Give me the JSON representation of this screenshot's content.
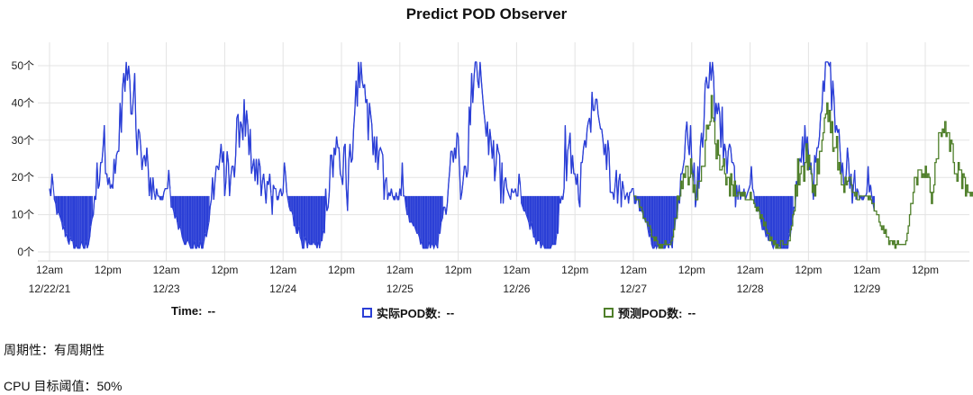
{
  "chart_data": {
    "type": "line",
    "title": "Predict POD Observer",
    "y_ticks": [
      "0个",
      "10个",
      "20个",
      "30个",
      "40个",
      "50个"
    ],
    "ylim": [
      0,
      51
    ],
    "x_ticks": [
      {
        "label": "12am",
        "date": "12/22/21",
        "hour": 0
      },
      {
        "label": "12pm",
        "date": "",
        "hour": 12
      },
      {
        "label": "12am",
        "date": "12/23",
        "hour": 24
      },
      {
        "label": "12pm",
        "date": "",
        "hour": 36
      },
      {
        "label": "12am",
        "date": "12/24",
        "hour": 48
      },
      {
        "label": "12pm",
        "date": "",
        "hour": 60
      },
      {
        "label": "12am",
        "date": "12/25",
        "hour": 72
      },
      {
        "label": "12pm",
        "date": "",
        "hour": 84
      },
      {
        "label": "12am",
        "date": "12/26",
        "hour": 96
      },
      {
        "label": "12pm",
        "date": "",
        "hour": 108
      },
      {
        "label": "12am",
        "date": "12/27",
        "hour": 120
      },
      {
        "label": "12pm",
        "date": "",
        "hour": 132
      },
      {
        "label": "12am",
        "date": "12/28",
        "hour": 144
      },
      {
        "label": "12pm",
        "date": "",
        "hour": 156
      },
      {
        "label": "12am",
        "date": "12/29",
        "hour": 168
      },
      {
        "label": "12pm",
        "date": "",
        "hour": 180
      }
    ],
    "series": [
      {
        "name": "实际POD数",
        "color": "#2b3fd6",
        "start_hour": 0,
        "end_hour": 169.5,
        "daily_profile": [
          [
            0,
            16
          ],
          [
            0.5,
            19
          ],
          [
            1,
            13
          ],
          [
            2,
            9
          ],
          [
            3,
            6
          ],
          [
            4,
            3
          ],
          [
            5,
            1
          ],
          [
            6,
            1
          ],
          [
            7,
            1
          ],
          [
            8,
            3
          ],
          [
            9,
            11
          ],
          [
            10,
            22
          ],
          [
            11,
            29
          ],
          [
            12,
            25
          ],
          [
            13,
            16
          ],
          [
            14,
            27
          ],
          [
            15,
            42
          ],
          [
            16,
            50
          ],
          [
            17,
            40
          ],
          [
            18,
            32
          ],
          [
            19,
            25
          ],
          [
            20,
            22
          ],
          [
            21,
            18
          ],
          [
            22,
            16
          ],
          [
            23,
            15
          ],
          [
            24,
            16
          ]
        ],
        "daily_peaks": [
          50,
          36,
          51,
          51,
          43,
          51,
          51,
          51
        ]
      },
      {
        "name": "预测POD数",
        "color": "#4f7f2a",
        "start_hour": 120,
        "end_hour": 193,
        "daily_profile": [
          [
            0,
            15
          ],
          [
            1,
            13
          ],
          [
            2,
            10
          ],
          [
            3,
            7
          ],
          [
            4,
            4
          ],
          [
            5,
            2
          ],
          [
            6,
            2
          ],
          [
            7,
            2
          ],
          [
            8,
            3
          ],
          [
            9,
            12
          ],
          [
            10,
            19
          ],
          [
            11,
            21
          ],
          [
            12,
            23
          ],
          [
            13,
            15
          ],
          [
            14,
            22
          ],
          [
            15,
            33
          ],
          [
            16,
            38
          ],
          [
            17,
            30
          ],
          [
            18,
            24
          ],
          [
            19,
            20
          ],
          [
            20,
            18
          ],
          [
            21,
            16
          ],
          [
            22,
            15
          ],
          [
            23,
            15
          ],
          [
            24,
            15
          ]
        ],
        "daily_peaks": [
          36,
          38,
          36,
          44
        ]
      }
    ],
    "legend": [
      {
        "label": "Time:",
        "value": "--"
      },
      {
        "label": "实际POD数:",
        "value": "--"
      },
      {
        "label": "预测POD数:",
        "value": "--"
      }
    ],
    "grid": true,
    "legend_position": "bottom"
  },
  "info": {
    "periodicity": "周期性：有周期性",
    "cpu_target": "CPU 目标阈值：50%"
  }
}
